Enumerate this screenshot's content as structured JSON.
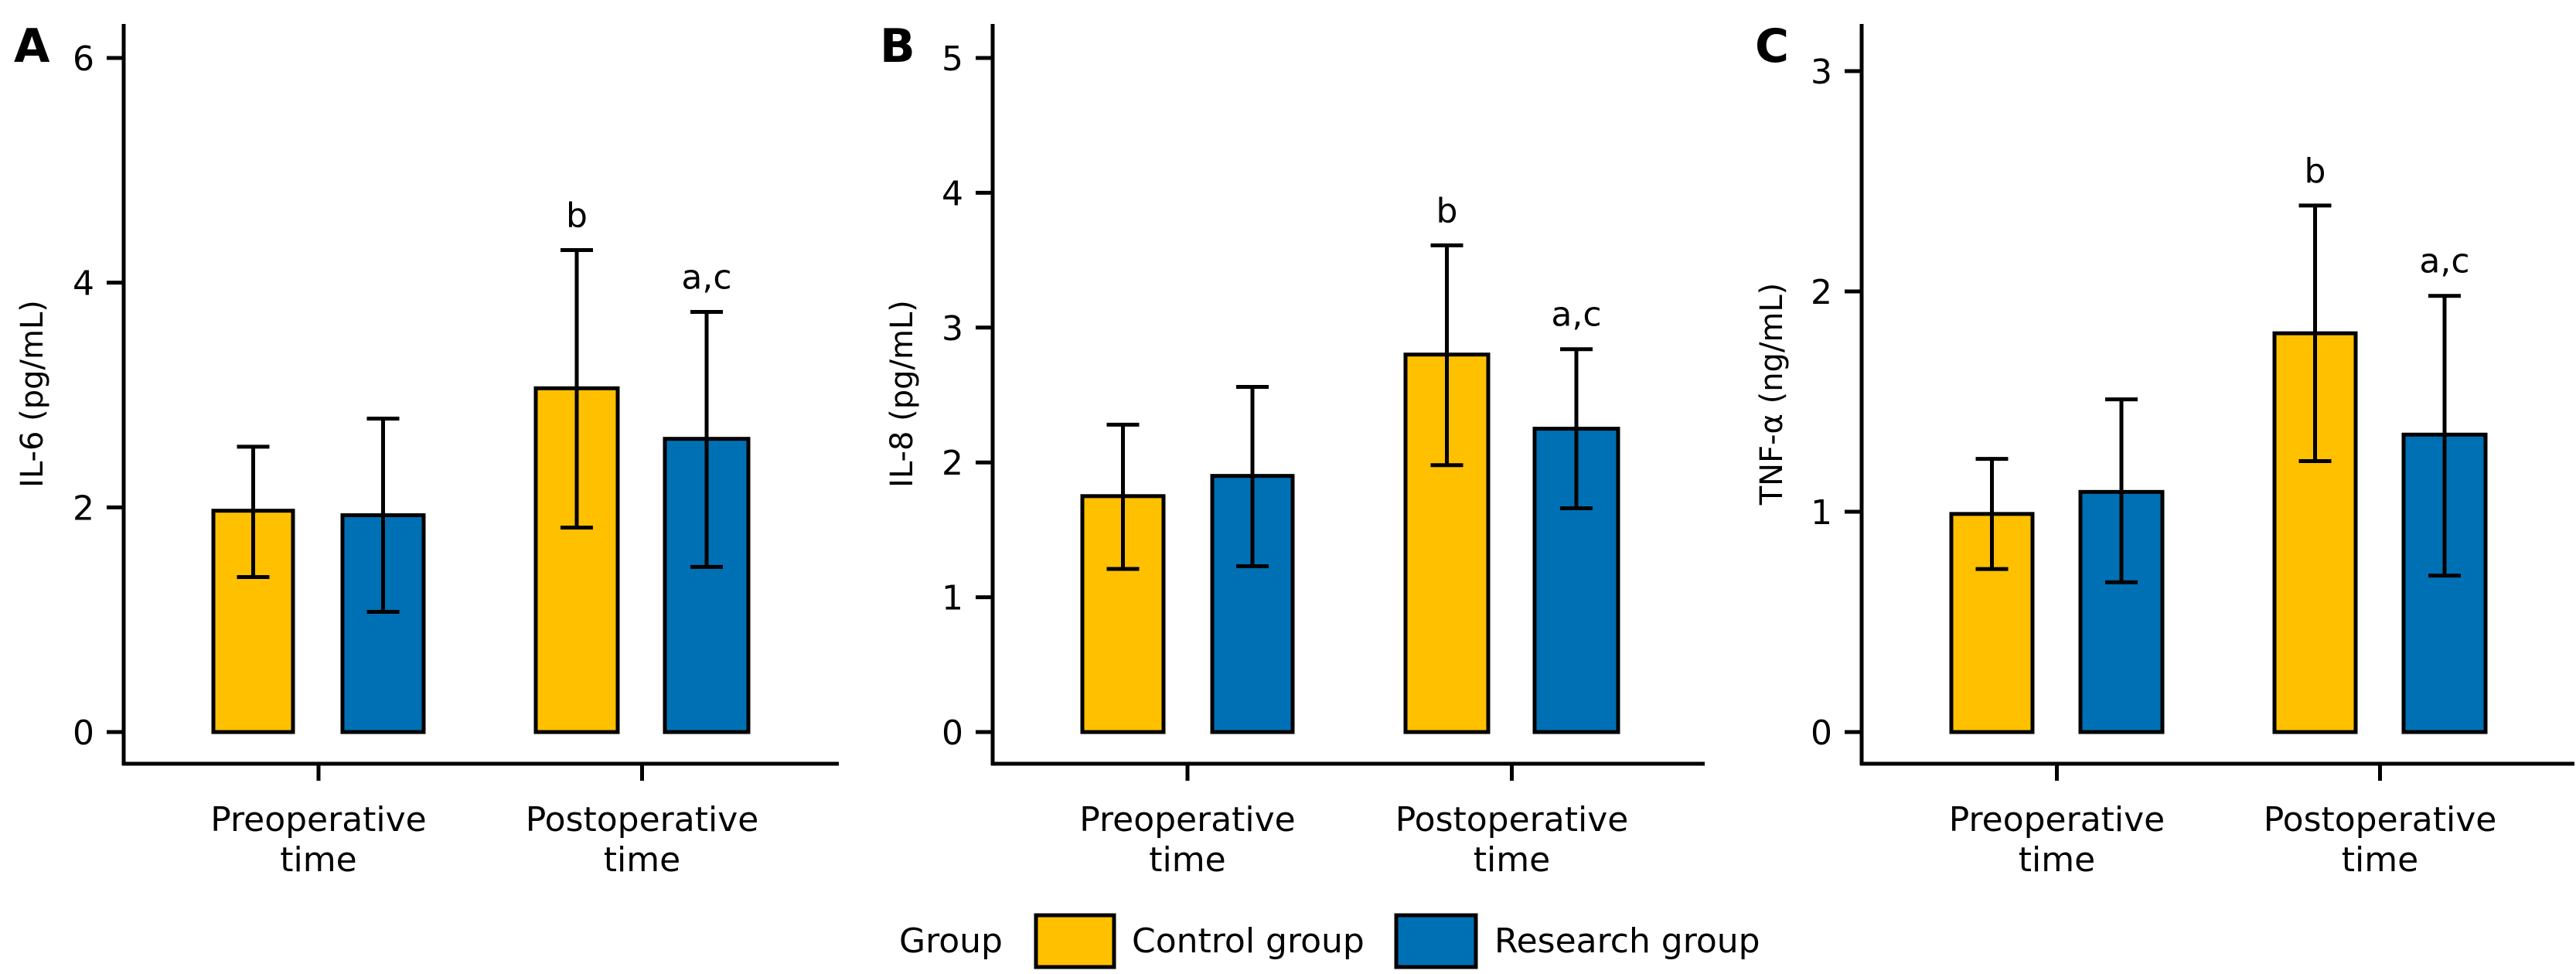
{
  "chart_data": [
    {
      "type": "bar",
      "panel": "A",
      "title": "",
      "xlabel": "",
      "ylabel": "IL-6 (pg/mL)",
      "ylim": [
        0,
        6
      ],
      "yticks": [
        "0",
        "2",
        "4",
        "6"
      ],
      "categories": [
        "Preoperative\ntime",
        "Postoperative\ntime"
      ],
      "series": [
        {
          "name": "Control group",
          "values": [
            1.97,
            3.06
          ],
          "err_low": [
            1.38,
            1.82
          ],
          "err_high": [
            2.54,
            4.29
          ],
          "annotations": [
            "",
            "b"
          ]
        },
        {
          "name": "Research group",
          "values": [
            1.93,
            2.61
          ],
          "err_low": [
            1.07,
            1.47
          ],
          "err_high": [
            2.79,
            3.74
          ],
          "annotations": [
            "",
            "a,c"
          ]
        }
      ]
    },
    {
      "type": "bar",
      "panel": "B",
      "title": "",
      "xlabel": "",
      "ylabel": "IL-8 (pg/mL)",
      "ylim": [
        0,
        5
      ],
      "yticks": [
        "0",
        "1",
        "2",
        "3",
        "4",
        "5"
      ],
      "categories": [
        "Preoperative\ntime",
        "Postoperative\ntime"
      ],
      "series": [
        {
          "name": "Control group",
          "values": [
            1.75,
            2.8
          ],
          "err_low": [
            1.21,
            1.98
          ],
          "err_high": [
            2.28,
            3.61
          ],
          "annotations": [
            "",
            "b"
          ]
        },
        {
          "name": "Research group",
          "values": [
            1.9,
            2.25
          ],
          "err_low": [
            1.23,
            1.66
          ],
          "err_high": [
            2.56,
            2.84
          ],
          "annotations": [
            "",
            "a,c"
          ]
        }
      ]
    },
    {
      "type": "bar",
      "panel": "C",
      "title": "",
      "xlabel": "",
      "ylabel": "TNF-α (ng/mL)",
      "ylim": [
        0,
        3
      ],
      "yticks": [
        "0",
        "1",
        "2",
        "3"
      ],
      "categories": [
        "Preoperative\ntime",
        "Postoperative\ntime"
      ],
      "series": [
        {
          "name": "Control group",
          "values": [
            0.99,
            1.81
          ],
          "err_low": [
            0.74,
            1.23
          ],
          "err_high": [
            1.24,
            2.39
          ],
          "annotations": [
            "",
            "b"
          ]
        },
        {
          "name": "Research group",
          "values": [
            1.09,
            1.35
          ],
          "err_low": [
            0.68,
            0.71
          ],
          "err_high": [
            1.51,
            1.98
          ],
          "annotations": [
            "",
            "a,c"
          ]
        }
      ]
    }
  ],
  "legend": {
    "title": "Group",
    "placement": "bottom-center",
    "items": [
      {
        "label": "Control group",
        "color": "#FFC000"
      },
      {
        "label": "Research group",
        "color": "#0070B5"
      }
    ]
  },
  "colors": {
    "control": "#FFC000",
    "research": "#0070B5",
    "stroke": "#000000"
  }
}
